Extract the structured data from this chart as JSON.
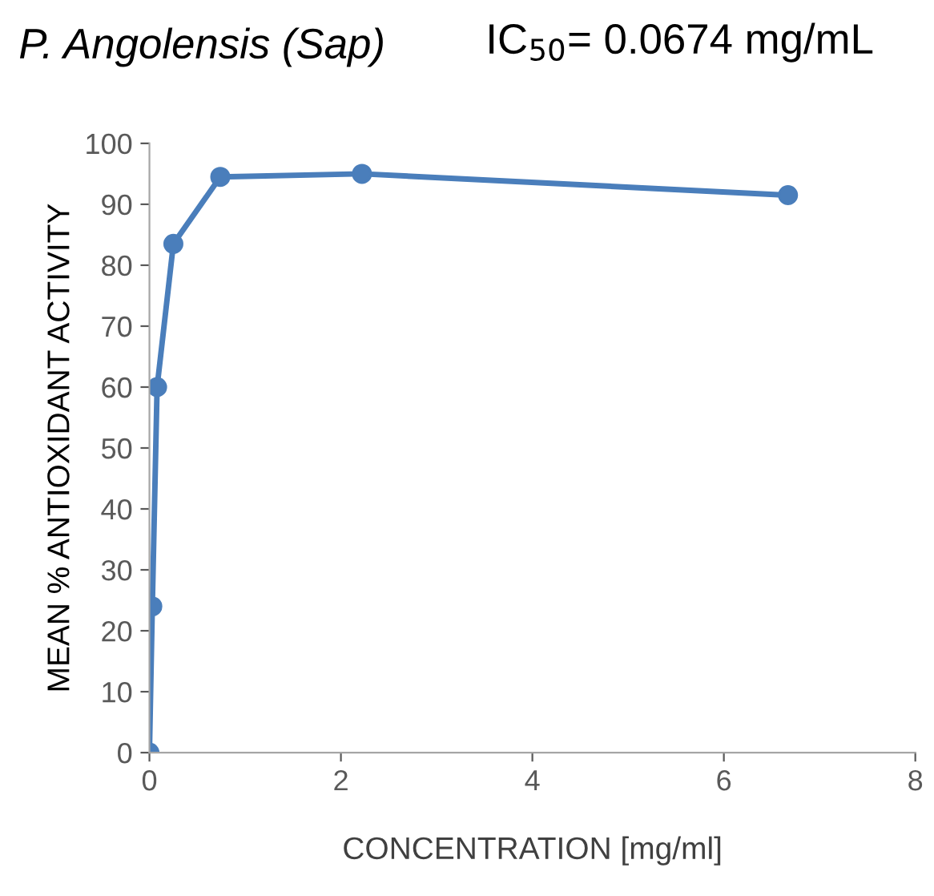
{
  "chart_data": {
    "type": "line",
    "title": "P. Angolensis (Sap)",
    "annotations": [
      "IC$_{50}$= 0.0674 mg/mL"
    ],
    "xlabel": "CONCENTRATION [mg/ml]",
    "ylabel": "MEAN % ANTIOXIDANT ACTIVITY",
    "series": [
      {
        "color": "#4a7ebb",
        "x": [
          0,
          0.03,
          0.08,
          0.25,
          0.74,
          2.22,
          6.67
        ],
        "values": [
          0,
          24,
          60,
          83.5,
          94.5,
          95,
          91.5
        ]
      }
    ],
    "xlim": [
      0,
      8
    ],
    "xticks": [
      0,
      2,
      4,
      6,
      8
    ],
    "ylim": [
      0,
      100
    ],
    "yticks": [
      0,
      10,
      20,
      30,
      40,
      50,
      60,
      70,
      80,
      90,
      100
    ],
    "marker": "circle",
    "line_style": "solid",
    "grid": false,
    "legend": false
  }
}
